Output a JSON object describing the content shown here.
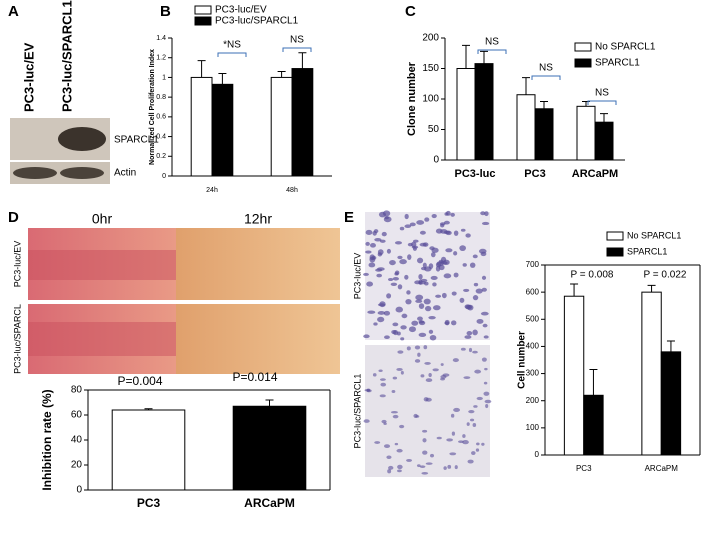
{
  "panel_labels": [
    "A",
    "B",
    "C",
    "D",
    "E"
  ],
  "blot": {
    "lanes": [
      "PC3-luc/EV",
      "PC3-luc/SPARCL1"
    ],
    "bands": [
      "SPARCL1",
      "Actin"
    ]
  },
  "wound": {
    "times": [
      "0hr",
      "12hr"
    ],
    "rows": [
      "PC3-luc/EV",
      "PC3-luc/SPARCL"
    ]
  },
  "invasion": {
    "rows": [
      "PC3-luc/EV",
      "PC3-luc/SPARCL1"
    ]
  },
  "chart_data": [
    {
      "type": "bar",
      "ylabel": "Normalized Cell Proliferation Index",
      "categories": [
        "24h",
        "48h"
      ],
      "series": [
        {
          "name": "PC3-luc/EV",
          "color": "#ffffff",
          "values": [
            1.0,
            1.0
          ],
          "errors": [
            0.17,
            0.06
          ]
        },
        {
          "name": "PC3-luc/SPARCL1",
          "color": "#000000",
          "values": [
            0.93,
            1.09
          ],
          "errors": [
            0.11,
            0.16
          ]
        }
      ],
      "ylim": [
        0,
        1.4
      ],
      "yticks": [
        0,
        0.2,
        0.4,
        0.6,
        0.8,
        1,
        1.2,
        1.4
      ],
      "annotations": [
        "*NS",
        "NS"
      ]
    },
    {
      "type": "bar",
      "ylabel": "Clone  number",
      "categories": [
        "PC3-luc",
        "PC3",
        "ARCaPM"
      ],
      "series": [
        {
          "name": "No SPARCL1",
          "color": "#ffffff",
          "values": [
            150,
            107,
            88
          ],
          "errors": [
            38,
            28,
            8
          ]
        },
        {
          "name": "SPARCL1",
          "color": "#000000",
          "values": [
            158,
            84,
            62
          ],
          "errors": [
            20,
            12,
            14
          ]
        }
      ],
      "ylim": [
        0,
        200
      ],
      "yticks": [
        0,
        50,
        100,
        150,
        200
      ],
      "annotations": [
        "NS",
        "NS",
        "NS"
      ]
    },
    {
      "type": "bar",
      "ylabel": "Inhibition rate (%)",
      "categories": [
        "PC3",
        "ARCaPM"
      ],
      "values": [
        64,
        67
      ],
      "errors": [
        1,
        5
      ],
      "colors": [
        "#ffffff",
        "#000000"
      ],
      "ylim": [
        0,
        80
      ],
      "yticks": [
        0,
        20,
        40,
        60,
        80
      ],
      "annotations": [
        "P=0.004",
        "P=0.014"
      ]
    },
    {
      "type": "bar",
      "ylabel": "Cell number",
      "categories": [
        "PC3",
        "ARCaPM"
      ],
      "series": [
        {
          "name": "No SPARCL1",
          "color": "#ffffff",
          "values": [
            585,
            600
          ],
          "errors": [
            45,
            25
          ]
        },
        {
          "name": "SPARCL1",
          "color": "#000000",
          "values": [
            220,
            380
          ],
          "errors": [
            95,
            40
          ]
        }
      ],
      "ylim": [
        0,
        700
      ],
      "yticks": [
        0,
        100,
        200,
        300,
        400,
        500,
        600,
        700
      ],
      "annotations": [
        "P = 0.008",
        "P = 0.022"
      ]
    }
  ]
}
